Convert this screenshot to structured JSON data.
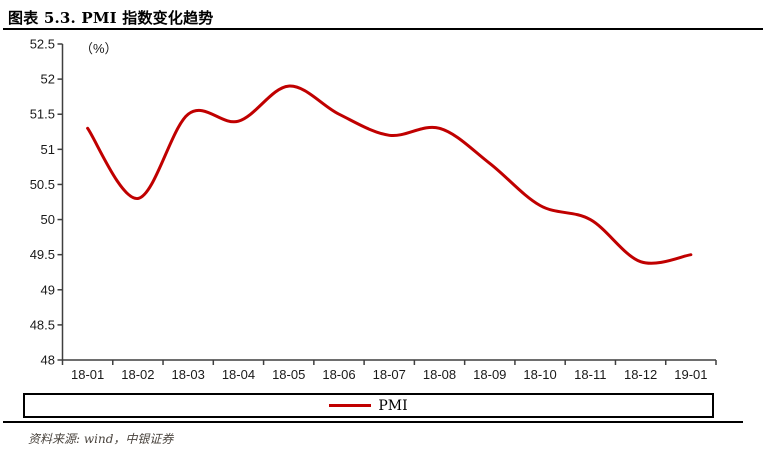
{
  "header": {
    "title": "图表 5.3. PMI 指数变化趋势"
  },
  "chart_data": {
    "type": "line",
    "title": "图表 5.3. PMI 指数变化趋势",
    "unit_label": "（%）",
    "xlabel": "",
    "ylabel": "(%)",
    "categories": [
      "18-01",
      "18-02",
      "18-03",
      "18-04",
      "18-05",
      "18-06",
      "18-07",
      "18-08",
      "18-09",
      "18-10",
      "18-11",
      "18-12",
      "19-01"
    ],
    "series": [
      {
        "name": "PMI",
        "color": "#c00000",
        "values": [
          51.3,
          50.3,
          51.5,
          51.4,
          51.9,
          51.5,
          51.2,
          51.3,
          50.8,
          50.2,
          50.0,
          49.4,
          49.5
        ]
      }
    ],
    "ylim": [
      48,
      52.5
    ],
    "ytick_step": 0.5,
    "yticks": [
      48,
      48.5,
      49,
      49.5,
      50,
      50.5,
      51,
      51.5,
      52,
      52.5
    ],
    "grid": false,
    "line_smooth": true,
    "legend_position": "bottom"
  },
  "legend": {
    "items": [
      {
        "label": "PMI",
        "color": "#c00000"
      }
    ]
  },
  "footer": {
    "source": "资料来源: wind，中银证券"
  },
  "colors": {
    "line": "#c00000",
    "axis": "#3f3f3f",
    "tick_text": "#1a1a1a",
    "title_text": "#000000",
    "footer_text": "#4a443e",
    "background": "#ffffff"
  }
}
